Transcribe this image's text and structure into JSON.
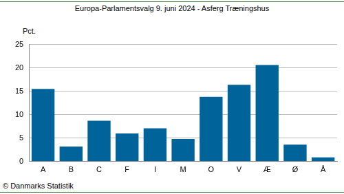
{
  "chart_data": {
    "type": "bar",
    "title": "Europa-Parlamentsvalg 9. juni 2024 - Asferg Træningshus",
    "y_label": "Pct.",
    "source": "© Danmarks Statistik",
    "categories": [
      "A",
      "B",
      "C",
      "F",
      "I",
      "M",
      "O",
      "V",
      "Æ",
      "Ø",
      "Å"
    ],
    "values": [
      15.5,
      3.2,
      8.7,
      6.0,
      7.1,
      4.8,
      13.8,
      16.4,
      20.6,
      3.6,
      0.9
    ],
    "color": "#00639a",
    "ylim": [
      0,
      25
    ],
    "yticks": [
      0,
      5,
      10,
      15,
      20,
      25
    ],
    "grid": true
  }
}
